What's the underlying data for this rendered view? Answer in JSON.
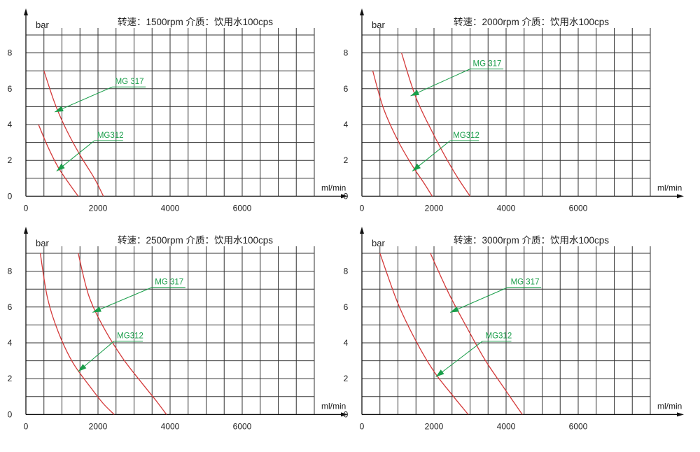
{
  "chart_data": [
    {
      "type": "line",
      "title": "转速：1500rpm   介质：饮用水100cps",
      "ylabel": "bar",
      "xlabel": "ml/min",
      "xlim": [
        0,
        8000
      ],
      "ylim": [
        0,
        9
      ],
      "x_ticks": [
        0,
        2000,
        4000,
        6000
      ],
      "y_ticks": [
        0,
        2,
        4,
        6,
        8
      ],
      "grid": true,
      "series": [
        {
          "name": "MG312",
          "points": [
            [
              350,
              4.0
            ],
            [
              600,
              2.8
            ],
            [
              900,
              1.6
            ],
            [
              1200,
              0.7
            ],
            [
              1450,
              0.0
            ]
          ]
        },
        {
          "name": "MG 317",
          "points": [
            [
              500,
              7.0
            ],
            [
              800,
              5.2
            ],
            [
              1100,
              3.8
            ],
            [
              1500,
              2.3
            ],
            [
              1900,
              1.0
            ],
            [
              2150,
              0.0
            ]
          ]
        }
      ],
      "annotations": [
        {
          "label": "MG 317",
          "target": [
            800,
            4.7
          ],
          "anchor": [
            2400,
            6.1
          ]
        },
        {
          "label": "MG312",
          "target": [
            850,
            1.4
          ],
          "anchor": [
            1900,
            3.1
          ]
        }
      ]
    },
    {
      "type": "line",
      "title": "转速：2000rpm   介质：饮用水100cps",
      "ylabel": "bar",
      "xlabel": "ml/min",
      "xlim": [
        0,
        8000
      ],
      "ylim": [
        0,
        9
      ],
      "x_ticks": [
        0,
        2000,
        4000,
        6000
      ],
      "y_ticks": [
        0,
        2,
        4,
        6,
        8
      ],
      "grid": true,
      "series": [
        {
          "name": "MG312",
          "points": [
            [
              300,
              7.0
            ],
            [
              600,
              4.9
            ],
            [
              1000,
              3.1
            ],
            [
              1400,
              1.7
            ],
            [
              1700,
              0.8
            ],
            [
              1950,
              0.0
            ]
          ]
        },
        {
          "name": "MG 317",
          "points": [
            [
              1100,
              8.0
            ],
            [
              1500,
              5.5
            ],
            [
              2000,
              3.4
            ],
            [
              2400,
              1.9
            ],
            [
              2700,
              0.9
            ],
            [
              3000,
              0.0
            ]
          ]
        }
      ],
      "annotations": [
        {
          "label": "MG 317",
          "target": [
            1350,
            5.6
          ],
          "anchor": [
            3000,
            7.1
          ]
        },
        {
          "label": "MG312",
          "target": [
            1400,
            1.4
          ],
          "anchor": [
            2450,
            3.1
          ]
        }
      ]
    },
    {
      "type": "line",
      "title": "转速：2500rpm   介质：饮用水100cps",
      "ylabel": "bar",
      "xlabel": "ml/min",
      "xlim": [
        0,
        8000
      ],
      "ylim": [
        0,
        9
      ],
      "x_ticks": [
        0,
        2000,
        4000,
        6000
      ],
      "y_ticks": [
        0,
        2,
        4,
        6,
        8
      ],
      "grid": true,
      "series": [
        {
          "name": "MG312",
          "points": [
            [
              400,
              9.0
            ],
            [
              600,
              6.5
            ],
            [
              900,
              4.6
            ],
            [
              1300,
              2.9
            ],
            [
              1800,
              1.5
            ],
            [
              2150,
              0.6
            ],
            [
              2450,
              0.0
            ]
          ]
        },
        {
          "name": "MG 317",
          "points": [
            [
              1450,
              9.0
            ],
            [
              1750,
              6.6
            ],
            [
              2200,
              4.7
            ],
            [
              2700,
              3.1
            ],
            [
              3200,
              1.8
            ],
            [
              3600,
              0.8
            ],
            [
              3900,
              0.0
            ]
          ]
        }
      ],
      "annotations": [
        {
          "label": "MG 317",
          "target": [
            1850,
            5.7
          ],
          "anchor": [
            3500,
            7.1
          ]
        },
        {
          "label": "MG312",
          "target": [
            1450,
            2.4
          ],
          "anchor": [
            2450,
            4.1
          ]
        }
      ]
    },
    {
      "type": "line",
      "title": "转速：3000rpm   介质：饮用水100cps",
      "ylabel": "bar",
      "xlabel": "ml/min",
      "xlim": [
        0,
        8000
      ],
      "ylim": [
        0,
        9
      ],
      "x_ticks": [
        0,
        2000,
        4000,
        6000
      ],
      "y_ticks": [
        0,
        2,
        4,
        6,
        8
      ],
      "grid": true,
      "series": [
        {
          "name": "MG312",
          "points": [
            [
              500,
              9.0
            ],
            [
              1000,
              6.2
            ],
            [
              1500,
              4.1
            ],
            [
              2000,
              2.4
            ],
            [
              2500,
              1.1
            ],
            [
              2950,
              0.0
            ]
          ]
        },
        {
          "name": "MG 317",
          "points": [
            [
              1900,
              9.0
            ],
            [
              2400,
              6.8
            ],
            [
              2900,
              4.9
            ],
            [
              3400,
              3.1
            ],
            [
              3900,
              1.6
            ],
            [
              4450,
              0.0
            ]
          ]
        }
      ],
      "annotations": [
        {
          "label": "MG 317",
          "target": [
            2450,
            5.7
          ],
          "anchor": [
            4050,
            7.1
          ]
        },
        {
          "label": "MG312",
          "target": [
            2050,
            2.1
          ],
          "anchor": [
            3350,
            4.1
          ]
        }
      ]
    }
  ]
}
